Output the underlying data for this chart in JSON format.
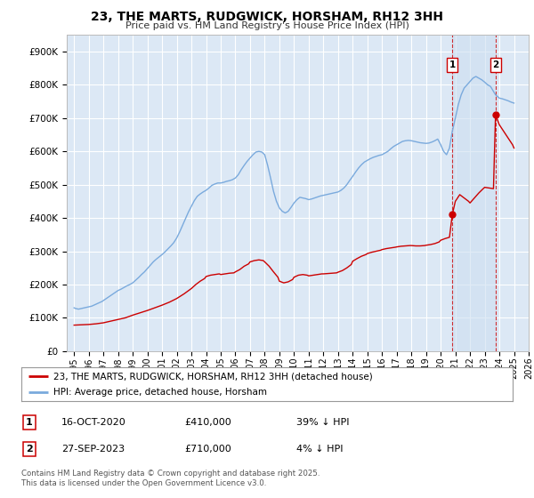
{
  "title": "23, THE MARTS, RUDGWICK, HORSHAM, RH12 3HH",
  "subtitle": "Price paid vs. HM Land Registry's House Price Index (HPI)",
  "background_color": "#ffffff",
  "plot_bg_color": "#dce8f5",
  "plot_bg_color2": "#ccddf0",
  "grid_color": "#ffffff",
  "hpi_color": "#7aaadd",
  "price_color": "#cc0000",
  "sale1_price": 410000,
  "sale2_price": 710000,
  "sale1_x": 2020.79,
  "sale2_x": 2023.74,
  "ylim_max": 950000,
  "xlim_min": 1994.5,
  "xlim_max": 2026.0,
  "legend_label_price": "23, THE MARTS, RUDGWICK, HORSHAM, RH12 3HH (detached house)",
  "legend_label_hpi": "HPI: Average price, detached house, Horsham",
  "annotation1_date": "16-OCT-2020",
  "annotation1_price_str": "£410,000",
  "annotation1_pct": "39% ↓ HPI",
  "annotation2_date": "27-SEP-2023",
  "annotation2_price_str": "£710,000",
  "annotation2_pct": "4% ↓ HPI",
  "footer": "Contains HM Land Registry data © Crown copyright and database right 2025.\nThis data is licensed under the Open Government Licence v3.0.",
  "hpi_x": [
    1995.0,
    1995.1,
    1995.2,
    1995.3,
    1995.4,
    1995.5,
    1995.6,
    1995.7,
    1995.8,
    1995.9,
    1996.0,
    1996.1,
    1996.2,
    1996.3,
    1996.4,
    1996.5,
    1996.6,
    1996.7,
    1996.8,
    1996.9,
    1997.0,
    1997.1,
    1997.2,
    1997.3,
    1997.4,
    1997.5,
    1997.6,
    1997.7,
    1997.8,
    1997.9,
    1998.0,
    1998.2,
    1998.4,
    1998.6,
    1998.8,
    1999.0,
    1999.2,
    1999.4,
    1999.6,
    1999.8,
    2000.0,
    2000.2,
    2000.4,
    2000.6,
    2000.8,
    2001.0,
    2001.2,
    2001.4,
    2001.6,
    2001.8,
    2002.0,
    2002.2,
    2002.4,
    2002.6,
    2002.8,
    2003.0,
    2003.2,
    2003.4,
    2003.6,
    2003.8,
    2004.0,
    2004.2,
    2004.4,
    2004.6,
    2004.8,
    2005.0,
    2005.2,
    2005.4,
    2005.6,
    2005.8,
    2006.0,
    2006.2,
    2006.4,
    2006.6,
    2006.8,
    2007.0,
    2007.2,
    2007.4,
    2007.6,
    2007.8,
    2008.0,
    2008.2,
    2008.4,
    2008.6,
    2008.8,
    2009.0,
    2009.2,
    2009.4,
    2009.6,
    2009.8,
    2010.0,
    2010.2,
    2010.4,
    2010.6,
    2010.8,
    2011.0,
    2011.2,
    2011.4,
    2011.6,
    2011.8,
    2012.0,
    2012.2,
    2012.4,
    2012.6,
    2012.8,
    2013.0,
    2013.2,
    2013.4,
    2013.6,
    2013.8,
    2014.0,
    2014.2,
    2014.4,
    2014.6,
    2014.8,
    2015.0,
    2015.2,
    2015.4,
    2015.6,
    2015.8,
    2016.0,
    2016.2,
    2016.4,
    2016.6,
    2016.8,
    2017.0,
    2017.2,
    2017.4,
    2017.6,
    2017.8,
    2018.0,
    2018.2,
    2018.4,
    2018.6,
    2018.8,
    2019.0,
    2019.2,
    2019.4,
    2019.6,
    2019.8,
    2020.0,
    2020.2,
    2020.4,
    2020.6,
    2020.79,
    2021.0,
    2021.2,
    2021.4,
    2021.6,
    2021.8,
    2022.0,
    2022.2,
    2022.4,
    2022.6,
    2022.8,
    2023.0,
    2023.2,
    2023.4,
    2023.6,
    2023.74,
    2024.0,
    2024.2,
    2024.4,
    2024.6,
    2024.8,
    2025.0
  ],
  "hpi_y": [
    130000,
    128000,
    127000,
    126000,
    127000,
    128000,
    129000,
    130000,
    131000,
    132000,
    133000,
    134000,
    135000,
    137000,
    139000,
    141000,
    143000,
    145000,
    147000,
    149000,
    152000,
    155000,
    158000,
    161000,
    164000,
    167000,
    170000,
    173000,
    176000,
    179000,
    182000,
    186000,
    191000,
    196000,
    200000,
    205000,
    213000,
    221000,
    230000,
    238000,
    248000,
    258000,
    268000,
    276000,
    283000,
    290000,
    298000,
    307000,
    316000,
    326000,
    340000,
    358000,
    378000,
    398000,
    418000,
    435000,
    452000,
    465000,
    472000,
    478000,
    483000,
    490000,
    498000,
    502000,
    505000,
    505000,
    507000,
    510000,
    512000,
    515000,
    520000,
    530000,
    545000,
    558000,
    570000,
    580000,
    590000,
    598000,
    600000,
    598000,
    590000,
    558000,
    520000,
    480000,
    450000,
    430000,
    420000,
    415000,
    420000,
    432000,
    445000,
    455000,
    462000,
    460000,
    458000,
    455000,
    457000,
    460000,
    463000,
    466000,
    468000,
    470000,
    472000,
    474000,
    476000,
    478000,
    483000,
    490000,
    500000,
    513000,
    525000,
    538000,
    550000,
    560000,
    568000,
    573000,
    578000,
    582000,
    585000,
    588000,
    590000,
    595000,
    600000,
    608000,
    615000,
    620000,
    625000,
    630000,
    632000,
    633000,
    632000,
    630000,
    628000,
    626000,
    625000,
    624000,
    625000,
    628000,
    632000,
    637000,
    620000,
    600000,
    590000,
    610000,
    660000,
    700000,
    740000,
    770000,
    790000,
    800000,
    810000,
    820000,
    825000,
    820000,
    815000,
    808000,
    800000,
    795000,
    780000,
    770000,
    760000,
    758000,
    755000,
    752000,
    748000,
    745000
  ],
  "price_x": [
    1995.0,
    1995.5,
    1996.0,
    1996.5,
    1997.0,
    1997.5,
    1998.0,
    1998.5,
    1999.0,
    1999.5,
    2000.0,
    2000.5,
    2001.0,
    2001.5,
    2002.0,
    2002.5,
    2003.0,
    2003.3,
    2003.6,
    2003.9,
    2004.0,
    2004.3,
    2004.6,
    2004.9,
    2005.0,
    2005.3,
    2005.6,
    2005.9,
    2006.0,
    2006.3,
    2006.6,
    2006.9,
    2007.0,
    2007.3,
    2007.6,
    2007.9,
    2008.0,
    2008.3,
    2008.6,
    2008.9,
    2009.0,
    2009.3,
    2009.6,
    2009.9,
    2010.0,
    2010.3,
    2010.6,
    2010.9,
    2011.0,
    2011.3,
    2011.6,
    2011.9,
    2012.0,
    2012.3,
    2012.6,
    2012.9,
    2013.0,
    2013.3,
    2013.6,
    2013.9,
    2014.0,
    2014.3,
    2014.6,
    2014.9,
    2015.0,
    2015.3,
    2015.6,
    2015.9,
    2016.0,
    2016.3,
    2016.6,
    2016.9,
    2017.0,
    2017.3,
    2017.6,
    2017.9,
    2018.0,
    2018.3,
    2018.6,
    2018.9,
    2019.0,
    2019.3,
    2019.6,
    2019.9,
    2020.0,
    2020.3,
    2020.6,
    2020.79,
    2021.0,
    2021.3,
    2021.6,
    2021.9,
    2022.0,
    2022.3,
    2022.6,
    2022.9,
    2023.0,
    2023.3,
    2023.6,
    2023.74,
    2024.0,
    2024.3,
    2024.6,
    2024.9,
    2025.0
  ],
  "price_y": [
    78000,
    79000,
    80000,
    82000,
    85000,
    90000,
    95000,
    100000,
    108000,
    115000,
    122000,
    130000,
    138000,
    147000,
    158000,
    172000,
    188000,
    200000,
    210000,
    218000,
    224000,
    228000,
    230000,
    232000,
    230000,
    232000,
    234000,
    235000,
    238000,
    245000,
    255000,
    262000,
    268000,
    272000,
    274000,
    272000,
    268000,
    255000,
    238000,
    222000,
    210000,
    205000,
    208000,
    215000,
    222000,
    228000,
    230000,
    228000,
    226000,
    228000,
    230000,
    232000,
    232000,
    233000,
    234000,
    235000,
    237000,
    242000,
    250000,
    260000,
    270000,
    278000,
    285000,
    290000,
    293000,
    297000,
    300000,
    303000,
    305000,
    308000,
    310000,
    312000,
    313000,
    315000,
    316000,
    317000,
    317000,
    316000,
    316000,
    317000,
    318000,
    320000,
    323000,
    328000,
    333000,
    338000,
    342000,
    410000,
    450000,
    470000,
    460000,
    450000,
    445000,
    460000,
    475000,
    488000,
    492000,
    490000,
    488000,
    710000,
    680000,
    660000,
    640000,
    620000,
    610000
  ]
}
